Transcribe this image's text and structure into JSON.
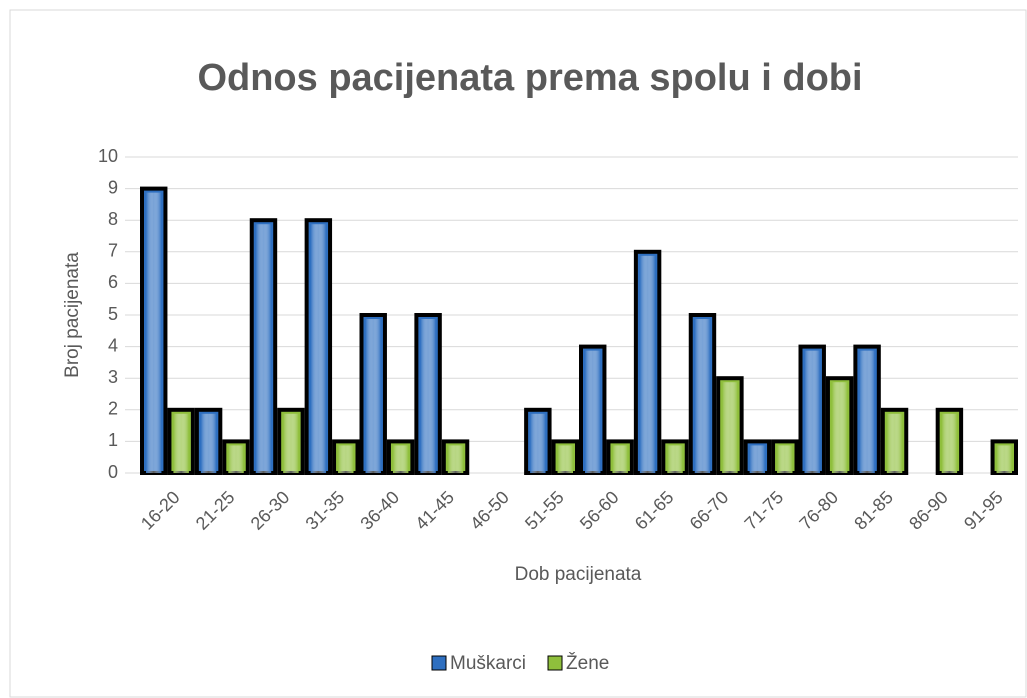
{
  "chart_data": {
    "type": "bar",
    "title": "Odnos pacijenata prema spolu i dobi",
    "x_label": "Dob pacijenata",
    "y_label": "Broj pacijenata",
    "categories": [
      "16-20",
      "21-25",
      "26-30",
      "31-35",
      "36-40",
      "41-45",
      "46-50",
      "51-55",
      "56-60",
      "61-65",
      "66-70",
      "71-75",
      "76-80",
      "81-85",
      "86-90",
      "91-95"
    ],
    "series": [
      {
        "name": "Muškarci",
        "color": "#2e6fc0",
        "values": [
          9,
          2,
          8,
          8,
          5,
          5,
          0,
          2,
          4,
          7,
          5,
          1,
          4,
          4,
          0,
          0
        ]
      },
      {
        "name": "Žene",
        "color": "#8fbf3c",
        "values": [
          2,
          1,
          2,
          1,
          1,
          1,
          0,
          1,
          1,
          1,
          3,
          1,
          3,
          2,
          2,
          1
        ]
      }
    ],
    "ylim": [
      0,
      10
    ],
    "yticks": [
      0,
      1,
      2,
      3,
      4,
      5,
      6,
      7,
      8,
      9,
      10
    ],
    "grid": true,
    "legend": "bottom"
  }
}
